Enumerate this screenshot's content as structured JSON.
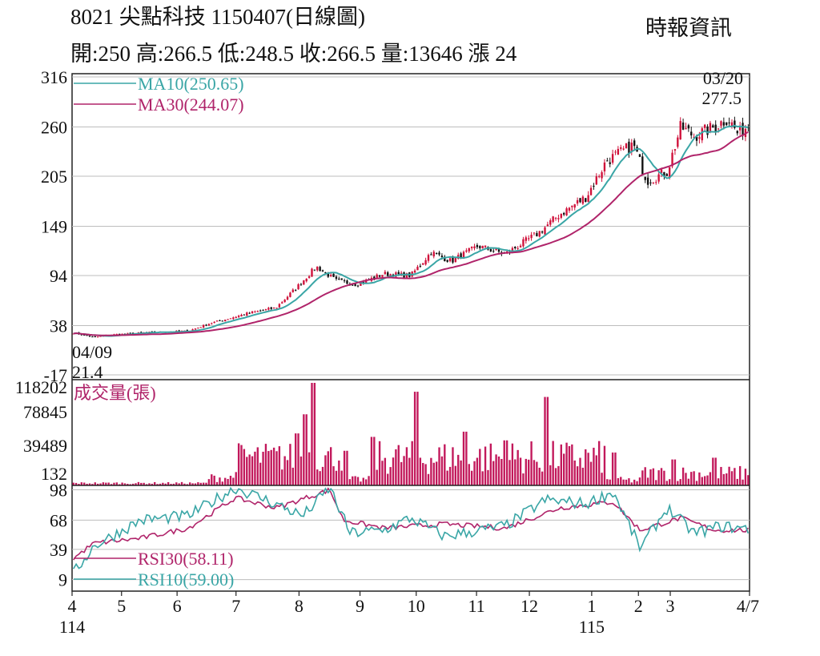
{
  "header": {
    "title": "8021  尖點科技 1150407(日線圖)",
    "source": "時報資訊",
    "ohlc_line": "開:250 高:266.5 低:248.5 收:266.5 量:13646 漲 24"
  },
  "chart_data": [
    {
      "type": "candlestick",
      "panel": "price",
      "yticks": [
        316,
        260,
        205,
        149,
        94,
        38,
        -17
      ],
      "ylim": [
        -17,
        316
      ],
      "grid": true,
      "legend": [
        {
          "label": "MA10(250.65)",
          "color": "#3aa6a6"
        },
        {
          "label": "MA30(244.07)",
          "color": "#b0246a"
        }
      ],
      "annotations": {
        "high": {
          "date": "03/20",
          "value": "277.5"
        },
        "low": {
          "date": "04/09",
          "value": "21.4"
        }
      },
      "candle_colors": {
        "up": "#d0103a",
        "down": "#111111"
      },
      "waypoints": [
        {
          "x": 0,
          "y": 30
        },
        {
          "x": 0.03,
          "y": 25
        },
        {
          "x": 0.06,
          "y": 28
        },
        {
          "x": 0.1,
          "y": 30
        },
        {
          "x": 0.17,
          "y": 32
        },
        {
          "x": 0.2,
          "y": 40
        },
        {
          "x": 0.26,
          "y": 52
        },
        {
          "x": 0.3,
          "y": 58
        },
        {
          "x": 0.33,
          "y": 80
        },
        {
          "x": 0.36,
          "y": 104
        },
        {
          "x": 0.39,
          "y": 88
        },
        {
          "x": 0.42,
          "y": 84
        },
        {
          "x": 0.46,
          "y": 96
        },
        {
          "x": 0.5,
          "y": 94
        },
        {
          "x": 0.53,
          "y": 120
        },
        {
          "x": 0.56,
          "y": 110
        },
        {
          "x": 0.6,
          "y": 127
        },
        {
          "x": 0.64,
          "y": 118
        },
        {
          "x": 0.69,
          "y": 142
        },
        {
          "x": 0.72,
          "y": 162
        },
        {
          "x": 0.76,
          "y": 182
        },
        {
          "x": 0.79,
          "y": 222
        },
        {
          "x": 0.83,
          "y": 240
        },
        {
          "x": 0.85,
          "y": 200
        },
        {
          "x": 0.88,
          "y": 210
        },
        {
          "x": 0.9,
          "y": 260
        },
        {
          "x": 0.92,
          "y": 250
        },
        {
          "x": 0.95,
          "y": 260
        },
        {
          "x": 0.97,
          "y": 270
        },
        {
          "x": 0.985,
          "y": 252
        },
        {
          "x": 1,
          "y": 262
        }
      ]
    },
    {
      "type": "bar",
      "panel": "volume",
      "title": "成交量(張)",
      "title_color": "#b0246a",
      "yticks": [
        118202,
        78845,
        39489,
        132
      ],
      "ylim": [
        132,
        118202
      ],
      "bar_color": "#c2185b",
      "notable_values": [
        12000,
        33000,
        82000,
        118202,
        60000,
        108000,
        62000,
        56000,
        44000,
        102000,
        48000,
        38000
      ]
    },
    {
      "type": "line",
      "panel": "rsi",
      "yticks": [
        98,
        68,
        39,
        9
      ],
      "ylim": [
        0,
        100
      ],
      "series": [
        {
          "name": "RSI30(58.11)",
          "color": "#b0246a",
          "waypoints": [
            {
              "x": 0,
              "y": 30
            },
            {
              "x": 0.03,
              "y": 45
            },
            {
              "x": 0.1,
              "y": 50
            },
            {
              "x": 0.17,
              "y": 60
            },
            {
              "x": 0.24,
              "y": 90
            },
            {
              "x": 0.3,
              "y": 80
            },
            {
              "x": 0.38,
              "y": 98
            },
            {
              "x": 0.4,
              "y": 68
            },
            {
              "x": 0.46,
              "y": 60
            },
            {
              "x": 0.55,
              "y": 64
            },
            {
              "x": 0.64,
              "y": 60
            },
            {
              "x": 0.72,
              "y": 80
            },
            {
              "x": 0.8,
              "y": 86
            },
            {
              "x": 0.84,
              "y": 58
            },
            {
              "x": 0.9,
              "y": 70
            },
            {
              "x": 0.95,
              "y": 58
            },
            {
              "x": 1,
              "y": 58
            }
          ]
        },
        {
          "name": "RSI10(59.00)",
          "color": "#3aa6a6",
          "waypoints": [
            {
              "x": 0,
              "y": 15
            },
            {
              "x": 0.03,
              "y": 42
            },
            {
              "x": 0.1,
              "y": 68
            },
            {
              "x": 0.17,
              "y": 72
            },
            {
              "x": 0.24,
              "y": 100
            },
            {
              "x": 0.3,
              "y": 84
            },
            {
              "x": 0.34,
              "y": 72
            },
            {
              "x": 0.38,
              "y": 100
            },
            {
              "x": 0.41,
              "y": 55
            },
            {
              "x": 0.46,
              "y": 58
            },
            {
              "x": 0.5,
              "y": 70
            },
            {
              "x": 0.55,
              "y": 52
            },
            {
              "x": 0.64,
              "y": 62
            },
            {
              "x": 0.7,
              "y": 88
            },
            {
              "x": 0.76,
              "y": 84
            },
            {
              "x": 0.8,
              "y": 96
            },
            {
              "x": 0.84,
              "y": 40
            },
            {
              "x": 0.88,
              "y": 80
            },
            {
              "x": 0.92,
              "y": 55
            },
            {
              "x": 0.96,
              "y": 62
            },
            {
              "x": 1,
              "y": 59
            }
          ]
        }
      ]
    }
  ],
  "x_axis": {
    "months": [
      {
        "label": "4",
        "pos": 0
      },
      {
        "label": "5",
        "pos": 0.073
      },
      {
        "label": "6",
        "pos": 0.155
      },
      {
        "label": "7",
        "pos": 0.242
      },
      {
        "label": "8",
        "pos": 0.335
      },
      {
        "label": "9",
        "pos": 0.425
      },
      {
        "label": "10",
        "pos": 0.508
      },
      {
        "label": "11",
        "pos": 0.597
      },
      {
        "label": "12",
        "pos": 0.675
      },
      {
        "label": "1",
        "pos": 0.767
      },
      {
        "label": "2",
        "pos": 0.836
      },
      {
        "label": "3",
        "pos": 0.883
      },
      {
        "label": "4/7",
        "pos": 1
      }
    ],
    "year_start": "114",
    "year_2026": "115",
    "year_2026_pos": 0.767
  }
}
